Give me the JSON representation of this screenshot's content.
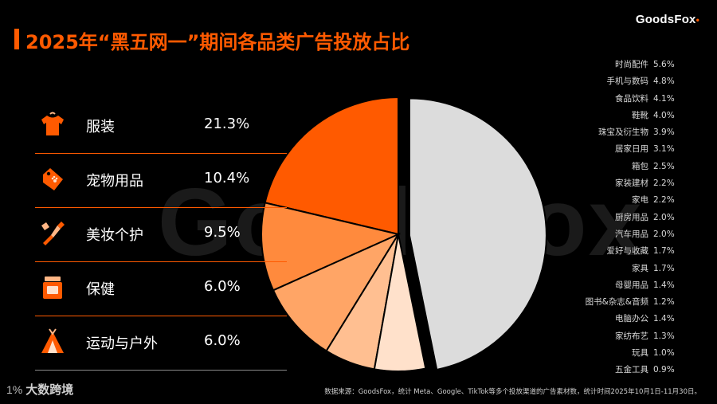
{
  "brand": {
    "name": "GoodsFox",
    "mark": "•"
  },
  "title": "2025年“黑五网一”期间各品类广告投放占比",
  "watermark": "GoodsFox",
  "footer": {
    "source": "数据来源：GoodsFox，统计 Meta、Google、TikTok等多个投放渠道的广告素材数，统计时间2025年10月1日-11月30日。",
    "logo_mark": "1%",
    "logo_text": "大数跨境"
  },
  "colors": {
    "accent": "#ff5a00",
    "slice_colors": [
      "#ff5a00",
      "#ff8a3d",
      "#ffa566",
      "#ffbf91",
      "#ffe1cb",
      "#dcdcdc"
    ]
  },
  "top_categories": [
    {
      "name": "服装",
      "value": "21.3%",
      "icon": "tshirt-icon"
    },
    {
      "name": "宠物用品",
      "value": "10.4%",
      "icon": "pet-tag-icon"
    },
    {
      "name": "美妆个护",
      "value": "9.5%",
      "icon": "makeup-brush-icon"
    },
    {
      "name": "保健",
      "value": "6.0%",
      "icon": "supplement-jar-icon"
    },
    {
      "name": "运动与户外",
      "value": "6.0%",
      "icon": "tent-icon"
    }
  ],
  "other_categories": [
    {
      "name": "时尚配件",
      "value": "5.6%"
    },
    {
      "name": "手机与数码",
      "value": "4.8%"
    },
    {
      "name": "食品饮料",
      "value": "4.1%"
    },
    {
      "name": "鞋靴",
      "value": "4.0%"
    },
    {
      "name": "珠宝及衍生物",
      "value": "3.9%"
    },
    {
      "name": "居家日用",
      "value": "3.1%"
    },
    {
      "name": "箱包",
      "value": "2.5%"
    },
    {
      "name": "家装建材",
      "value": "2.2%"
    },
    {
      "name": "家电",
      "value": "2.2%"
    },
    {
      "name": "厨房用品",
      "value": "2.0%"
    },
    {
      "name": "汽车用品",
      "value": "2.0%"
    },
    {
      "name": "爱好与收藏",
      "value": "1.7%"
    },
    {
      "name": "家具",
      "value": "1.7%"
    },
    {
      "name": "母婴用品",
      "value": "1.4%"
    },
    {
      "name": "图书&杂志&音频",
      "value": "1.2%"
    },
    {
      "name": "电脑办公",
      "value": "1.4%"
    },
    {
      "name": "家纺布艺",
      "value": "1.3%"
    },
    {
      "name": "玩具",
      "value": "1.0%"
    },
    {
      "name": "五金工具",
      "value": "0.9%"
    }
  ],
  "chart_data": {
    "type": "pie",
    "title": "2025年“黑五网一”期间各品类广告投放占比",
    "slices": [
      {
        "name": "服装",
        "value": 21.3
      },
      {
        "name": "宠物用品",
        "value": 10.4
      },
      {
        "name": "美妆个护",
        "value": 9.5
      },
      {
        "name": "保健",
        "value": 6.0
      },
      {
        "name": "运动与户外",
        "value": 6.0
      },
      {
        "name": "",
        "value": 46.8
      }
    ],
    "exploded_slice_index": 5,
    "start_angle_deg": 0,
    "direction": "counterclockwise",
    "legend": "left and right lists"
  }
}
